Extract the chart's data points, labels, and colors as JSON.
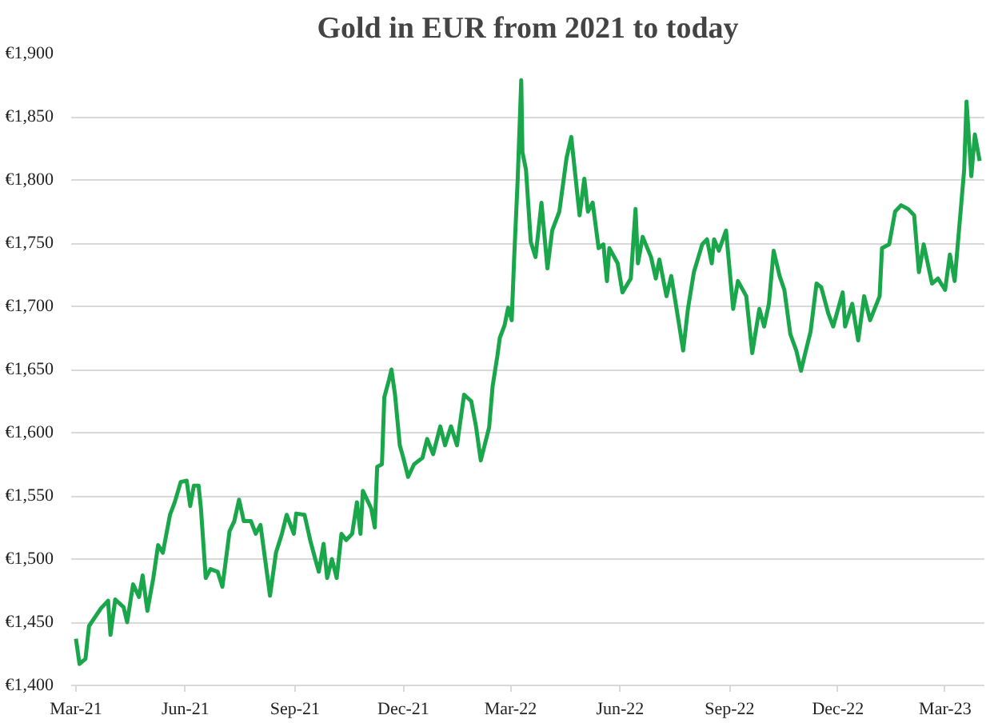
{
  "chart_data": {
    "type": "line",
    "title": "Gold in EUR from 2021 to today",
    "x": [
      "2021-03-01",
      "2021-03-04",
      "2021-03-09",
      "2021-03-12",
      "2021-03-22",
      "2021-03-28",
      "2021-03-30",
      "2021-04-03",
      "2021-04-10",
      "2021-04-13",
      "2021-04-18",
      "2021-04-23",
      "2021-04-26",
      "2021-04-30",
      "2021-05-05",
      "2021-05-09",
      "2021-05-13",
      "2021-05-19",
      "2021-05-23",
      "2021-05-28",
      "2021-06-02",
      "2021-06-05",
      "2021-06-08",
      "2021-06-12",
      "2021-06-14",
      "2021-06-18",
      "2021-06-22",
      "2021-06-28",
      "2021-07-02",
      "2021-07-06",
      "2021-07-08",
      "2021-07-12",
      "2021-07-16",
      "2021-07-20",
      "2021-07-26",
      "2021-07-30",
      "2021-08-03",
      "2021-08-11",
      "2021-08-16",
      "2021-08-21",
      "2021-08-25",
      "2021-08-31",
      "2021-09-02",
      "2021-09-09",
      "2021-09-14",
      "2021-09-18",
      "2021-09-21",
      "2021-09-25",
      "2021-09-28",
      "2021-10-02",
      "2021-10-06",
      "2021-10-10",
      "2021-10-14",
      "2021-10-19",
      "2021-10-23",
      "2021-10-26",
      "2021-10-28",
      "2021-11-04",
      "2021-11-07",
      "2021-11-09",
      "2021-11-13",
      "2021-11-15",
      "2021-11-19",
      "2021-11-21",
      "2021-11-24",
      "2021-11-28",
      "2021-12-01",
      "2021-12-05",
      "2021-12-10",
      "2021-12-17",
      "2021-12-21",
      "2021-12-26",
      "2022-01-01",
      "2022-01-05",
      "2022-01-10",
      "2022-01-15",
      "2022-01-21",
      "2022-01-27",
      "2022-01-31",
      "2022-02-04",
      "2022-02-11",
      "2022-02-14",
      "2022-02-18",
      "2022-02-20",
      "2022-02-24",
      "2022-02-27",
      "2022-03-02",
      "2022-03-04",
      "2022-03-07",
      "2022-03-10",
      "2022-03-11",
      "2022-03-14",
      "2022-03-18",
      "2022-03-22",
      "2022-03-27",
      "2022-04-01",
      "2022-04-05",
      "2022-04-11",
      "2022-04-17",
      "2022-04-21",
      "2022-04-28",
      "2022-05-02",
      "2022-05-05",
      "2022-05-09",
      "2022-05-14",
      "2022-05-18",
      "2022-05-21",
      "2022-05-23",
      "2022-05-30",
      "2022-06-03",
      "2022-06-10",
      "2022-06-14",
      "2022-06-16",
      "2022-06-20",
      "2022-06-27",
      "2022-07-01",
      "2022-07-04",
      "2022-07-10",
      "2022-07-14",
      "2022-07-20",
      "2022-07-24",
      "2022-07-28",
      "2022-08-02",
      "2022-08-09",
      "2022-08-13",
      "2022-08-17",
      "2022-08-19",
      "2022-08-23",
      "2022-08-29",
      "2022-09-04",
      "2022-09-08",
      "2022-09-15",
      "2022-09-20",
      "2022-09-26",
      "2022-09-30",
      "2022-10-04",
      "2022-10-08",
      "2022-10-13",
      "2022-10-17",
      "2022-10-22",
      "2022-10-27",
      "2022-10-31",
      "2022-11-03",
      "2022-11-08",
      "2022-11-13",
      "2022-11-17",
      "2022-11-23",
      "2022-11-27",
      "2022-12-05",
      "2022-12-07",
      "2022-12-13",
      "2022-12-18",
      "2022-12-23",
      "2022-12-28",
      "2023-01-05",
      "2023-01-07",
      "2023-01-13",
      "2023-01-18",
      "2023-01-23",
      "2023-01-29",
      "2023-02-03",
      "2023-02-07",
      "2023-02-11",
      "2023-02-18",
      "2023-02-23",
      "2023-03-01",
      "2023-03-05",
      "2023-03-09",
      "2023-03-14",
      "2023-03-17",
      "2023-03-19",
      "2023-03-23",
      "2023-03-26",
      "2023-03-30"
    ],
    "series": [
      {
        "color": "#1aa64a",
        "values": [
          1437,
          1417,
          1421,
          1447,
          1461,
          1467,
          1440,
          1468,
          1462,
          1450,
          1480,
          1470,
          1487,
          1459,
          1485,
          1511,
          1505,
          1535,
          1545,
          1561,
          1562,
          1542,
          1558,
          1558,
          1540,
          1485,
          1492,
          1490,
          1478,
          1507,
          1522,
          1530,
          1547,
          1530,
          1530,
          1520,
          1527,
          1471,
          1505,
          1520,
          1535,
          1520,
          1536,
          1535,
          1514,
          1500,
          1490,
          1512,
          1485,
          1500,
          1485,
          1520,
          1515,
          1520,
          1545,
          1520,
          1554,
          1540,
          1525,
          1573,
          1575,
          1628,
          1642,
          1650,
          1630,
          1590,
          1580,
          1565,
          1575,
          1580,
          1595,
          1583,
          1605,
          1590,
          1605,
          1590,
          1630,
          1625,
          1605,
          1578,
          1604,
          1637,
          1661,
          1675,
          1685,
          1699,
          1689,
          1737,
          1800,
          1879,
          1822,
          1808,
          1751,
          1739,
          1782,
          1730,
          1760,
          1775,
          1817,
          1834,
          1772,
          1801,
          1775,
          1782,
          1746,
          1749,
          1720,
          1746,
          1734,
          1711,
          1722,
          1777,
          1734,
          1755,
          1739,
          1722,
          1737,
          1708,
          1724,
          1689,
          1665,
          1698,
          1727,
          1749,
          1753,
          1734,
          1753,
          1744,
          1760,
          1698,
          1720,
          1708,
          1663,
          1698,
          1684,
          1702,
          1744,
          1724,
          1713,
          1678,
          1665,
          1649,
          1661,
          1680,
          1718,
          1715,
          1694,
          1684,
          1711,
          1684,
          1702,
          1673,
          1708,
          1689,
          1708,
          1746,
          1749,
          1775,
          1780,
          1777,
          1772,
          1727,
          1749,
          1718,
          1722,
          1713,
          1741,
          1720,
          1775,
          1808,
          1862,
          1803,
          1836,
          1815
        ]
      }
    ],
    "xlim": [
      "2021-02-25",
      "2023-04-03"
    ],
    "xticks": [
      {
        "value": "2021-03-01",
        "label": "Mar-21"
      },
      {
        "value": "2021-06-01",
        "label": "Jun-21"
      },
      {
        "value": "2021-09-01",
        "label": "Sep-21"
      },
      {
        "value": "2021-12-01",
        "label": "Dec-21"
      },
      {
        "value": "2022-03-01",
        "label": "Mar-22"
      },
      {
        "value": "2022-06-01",
        "label": "Jun-22"
      },
      {
        "value": "2022-09-01",
        "label": "Sep-22"
      },
      {
        "value": "2022-12-01",
        "label": "Dec-22"
      },
      {
        "value": "2023-03-01",
        "label": "Mar-23"
      }
    ],
    "ylim": [
      1400,
      1900
    ],
    "yticks": [
      {
        "value": 1400,
        "label": "€1,400"
      },
      {
        "value": 1450,
        "label": "€1,450"
      },
      {
        "value": 1500,
        "label": "€1,500"
      },
      {
        "value": 1550,
        "label": "€1,550"
      },
      {
        "value": 1600,
        "label": "€1,600"
      },
      {
        "value": 1650,
        "label": "€1,650"
      },
      {
        "value": 1700,
        "label": "€1,700"
      },
      {
        "value": 1750,
        "label": "€1,750"
      },
      {
        "value": 1800,
        "label": "€1,800"
      },
      {
        "value": 1850,
        "label": "€1,850"
      },
      {
        "value": 1900,
        "label": "€1,900"
      }
    ],
    "grid": "y",
    "line_style": "solid"
  }
}
